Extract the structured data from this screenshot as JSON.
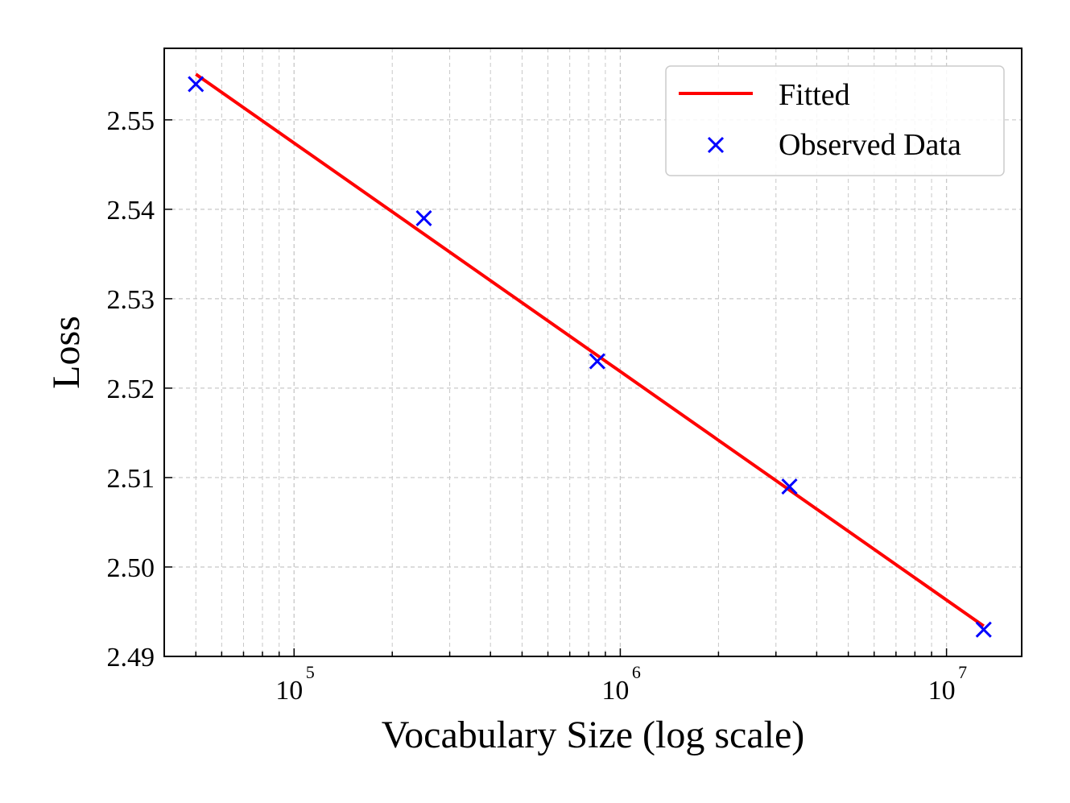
{
  "chart_data": {
    "type": "line",
    "title": "",
    "xlabel": "Vocabulary Size (log scale)",
    "ylabel": "Loss",
    "x_scale": "log",
    "xlim": [
      40000,
      17000000
    ],
    "ylim": [
      2.49,
      2.558
    ],
    "x_ticks": [
      {
        "value": 100000,
        "base": "10",
        "exp": "5"
      },
      {
        "value": 1000000,
        "base": "10",
        "exp": "6"
      },
      {
        "value": 10000000,
        "base": "10",
        "exp": "7"
      }
    ],
    "y_ticks": [
      {
        "value": 2.49,
        "label": "2.49"
      },
      {
        "value": 2.5,
        "label": "2.50"
      },
      {
        "value": 2.51,
        "label": "2.51"
      },
      {
        "value": 2.52,
        "label": "2.52"
      },
      {
        "value": 2.53,
        "label": "2.53"
      },
      {
        "value": 2.54,
        "label": "2.54"
      },
      {
        "value": 2.55,
        "label": "2.55"
      }
    ],
    "grid": true,
    "legend_position": "top-right",
    "series": [
      {
        "name": "Fitted",
        "type": "line",
        "color": "#ff0000",
        "x": [
          50000,
          13000000
        ],
        "y": [
          2.5551,
          2.4934
        ]
      },
      {
        "name": "Observed Data",
        "type": "scatter",
        "marker": "x",
        "color": "#0000ff",
        "x": [
          50000,
          250000,
          850000,
          3300000,
          13000000
        ],
        "y": [
          2.554,
          2.539,
          2.523,
          2.509,
          2.493
        ]
      }
    ]
  }
}
